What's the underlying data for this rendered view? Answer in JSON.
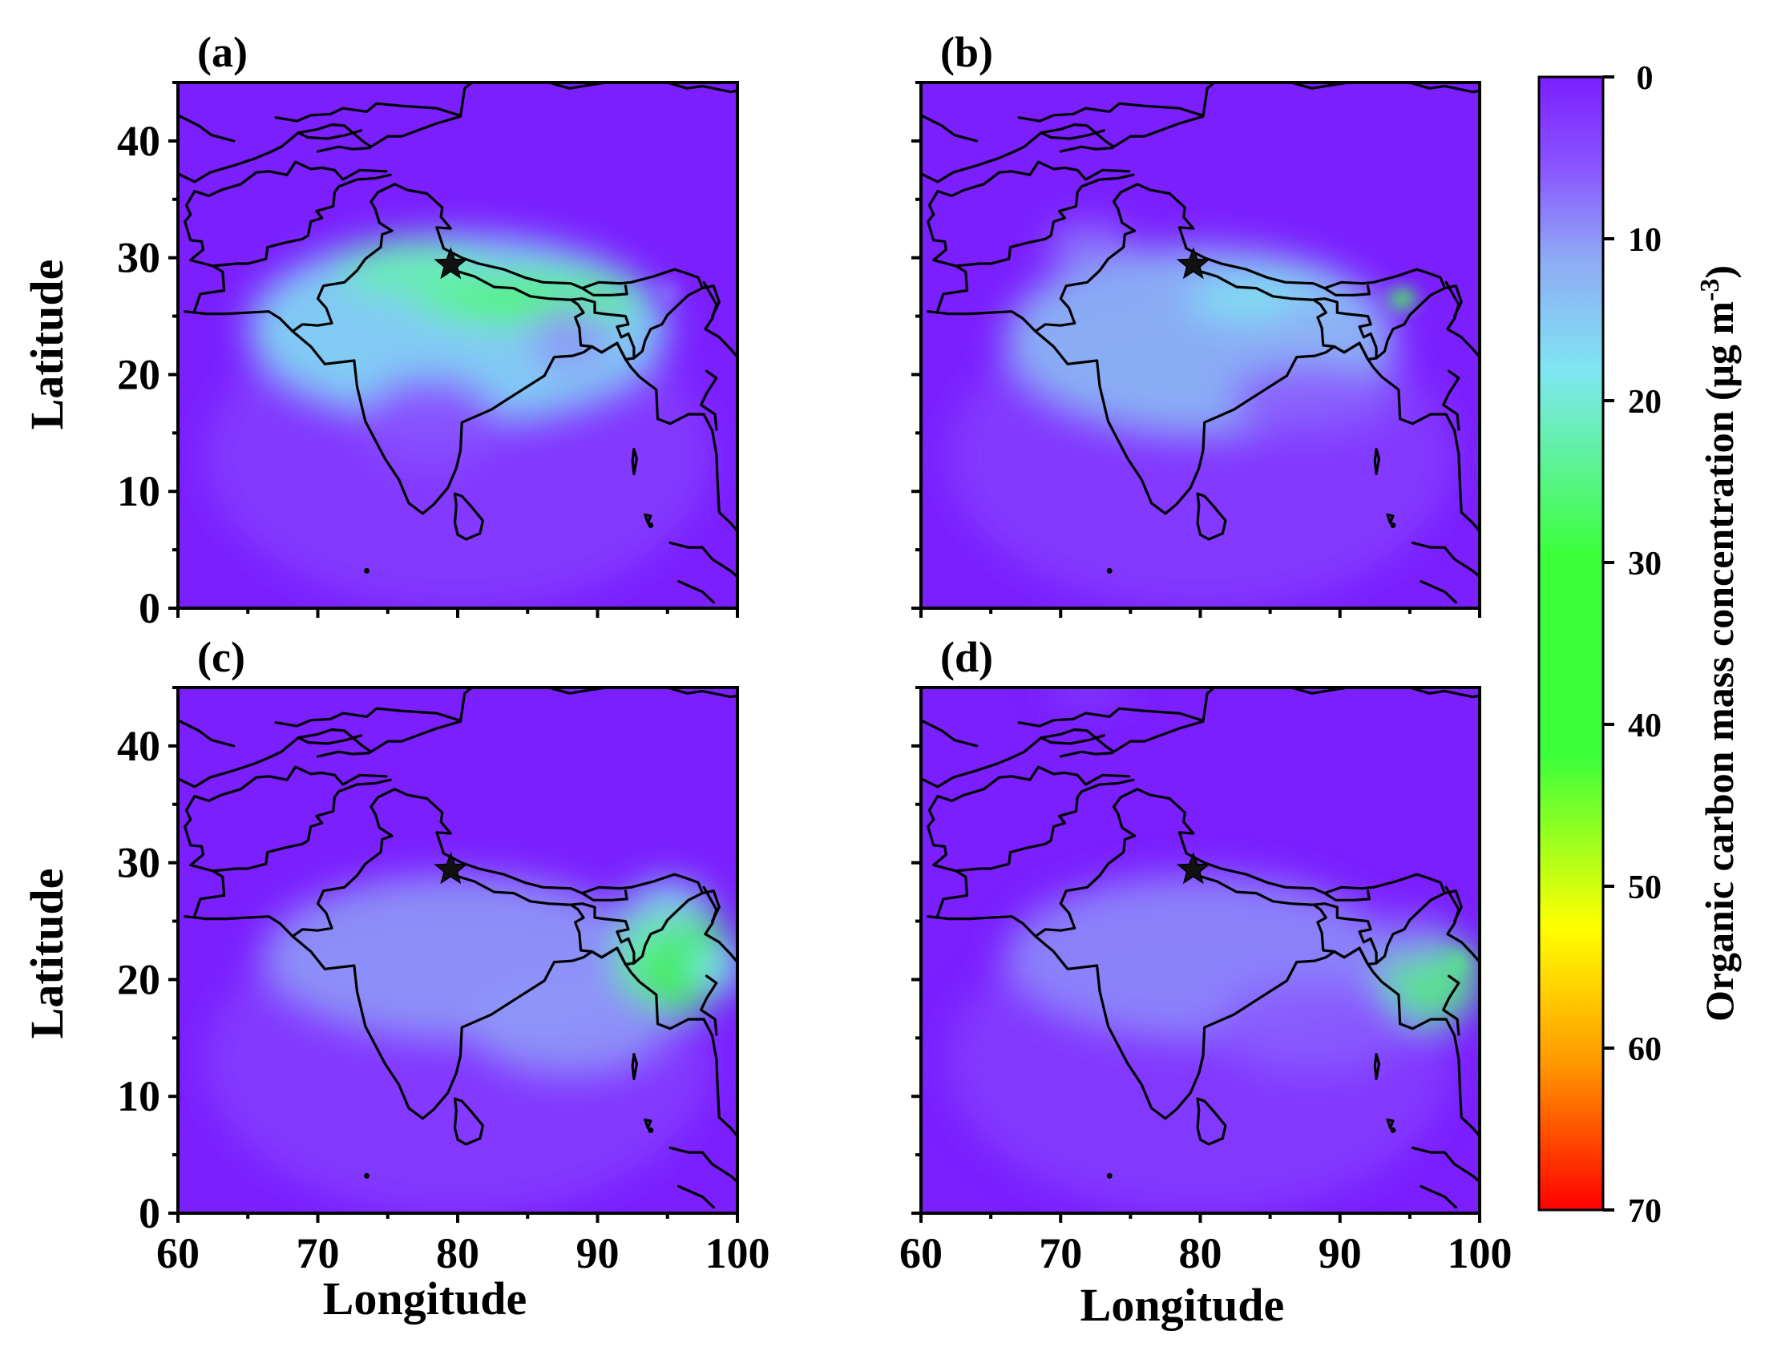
{
  "colors": {
    "background": "#7b1fff",
    "colormap": [
      "#7b1fff",
      "#8a55ff",
      "#8faaf5",
      "#7fe6f2",
      "#3cff3c",
      "#ffff00",
      "#ff9900",
      "#ff0000"
    ]
  },
  "chart_data": {
    "type": "heatmap",
    "x_axis": {
      "label": "Longitude",
      "range": [
        60,
        100
      ],
      "ticks": [
        "60",
        "70",
        "80",
        "90",
        "100"
      ]
    },
    "y_axis": {
      "label": "Latitude",
      "range": [
        0,
        45
      ],
      "ticks": [
        "0",
        "10",
        "20",
        "30",
        "40"
      ]
    },
    "colorbar": {
      "title": "Organic carbon mass concentration (μg m",
      "title_sup": "-3",
      "title_end": ")",
      "range": [
        0,
        70
      ],
      "ticks": [
        "0",
        "10",
        "20",
        "30",
        "40",
        "50",
        "60",
        "70"
      ],
      "reversed": true
    },
    "marker": {
      "symbol": "star",
      "lon": 79.5,
      "lat": 29.4
    },
    "panels": [
      {
        "label": "(a)",
        "blobs": [
          {
            "lon": 80,
            "lat": 24,
            "rlon": 15,
            "rlat": 8,
            "value": 17
          },
          {
            "lon": 85,
            "lat": 26.5,
            "rlon": 8,
            "rlat": 2.2,
            "value": 26
          },
          {
            "lon": 76.5,
            "lat": 29,
            "rlon": 5,
            "rlat": 2.5,
            "value": 22
          },
          {
            "lon": 88,
            "lat": 23,
            "rlon": 3,
            "rlat": 3,
            "value": 10
          },
          {
            "lon": 78,
            "lat": 16,
            "rlon": 5,
            "rlat": 4,
            "value": 5
          },
          {
            "lon": 95,
            "lat": 27,
            "rlon": 0.8,
            "rlat": 0.8,
            "value": 8
          }
        ]
      },
      {
        "label": "(b)",
        "blobs": [
          {
            "lon": 80,
            "lat": 23,
            "rlon": 14,
            "rlat": 8,
            "value": 13
          },
          {
            "lon": 85,
            "lat": 26.5,
            "rlon": 6,
            "rlat": 2,
            "value": 18
          },
          {
            "lon": 89,
            "lat": 24,
            "rlon": 4,
            "rlat": 3,
            "value": 12
          },
          {
            "lon": 72,
            "lat": 31,
            "rlon": 3,
            "rlat": 2,
            "value": 8
          },
          {
            "lon": 94.5,
            "lat": 26.5,
            "rlon": 1,
            "rlat": 0.9,
            "value": 28
          },
          {
            "lon": 88,
            "lat": 18,
            "rlon": 6,
            "rlat": 3,
            "value": 6
          }
        ]
      },
      {
        "label": "(c)",
        "blobs": [
          {
            "lon": 80,
            "lat": 22,
            "rlon": 14,
            "rlat": 7,
            "value": 10
          },
          {
            "lon": 95.5,
            "lat": 22,
            "rlon": 4,
            "rlat": 5,
            "value": 35
          },
          {
            "lon": 93,
            "lat": 23,
            "rlon": 1.5,
            "rlat": 1.8,
            "value": 22
          },
          {
            "lon": 98.5,
            "lat": 21,
            "rlon": 2,
            "rlat": 2,
            "value": 18
          },
          {
            "lon": 95,
            "lat": 26.5,
            "rlon": 3,
            "rlat": 2,
            "value": 15
          },
          {
            "lon": 88,
            "lat": 16,
            "rlon": 7,
            "rlat": 4,
            "value": 10
          }
        ]
      },
      {
        "label": "(d)",
        "blobs": [
          {
            "lon": 80,
            "lat": 22,
            "rlon": 14,
            "rlat": 7,
            "value": 9
          },
          {
            "lon": 96.5,
            "lat": 20,
            "rlon": 3.5,
            "rlat": 4,
            "value": 25
          },
          {
            "lon": 95,
            "lat": 23.5,
            "rlon": 2.5,
            "rlat": 2,
            "value": 8
          },
          {
            "lon": 98.5,
            "lat": 21.5,
            "rlon": 0.8,
            "rlat": 0.8,
            "value": 25
          },
          {
            "lon": 88,
            "lat": 16,
            "rlon": 7,
            "rlat": 4,
            "value": 6
          },
          {
            "lon": 72,
            "lat": 44.6,
            "rlon": 3,
            "rlat": 0.6,
            "value": 6
          }
        ]
      }
    ]
  }
}
